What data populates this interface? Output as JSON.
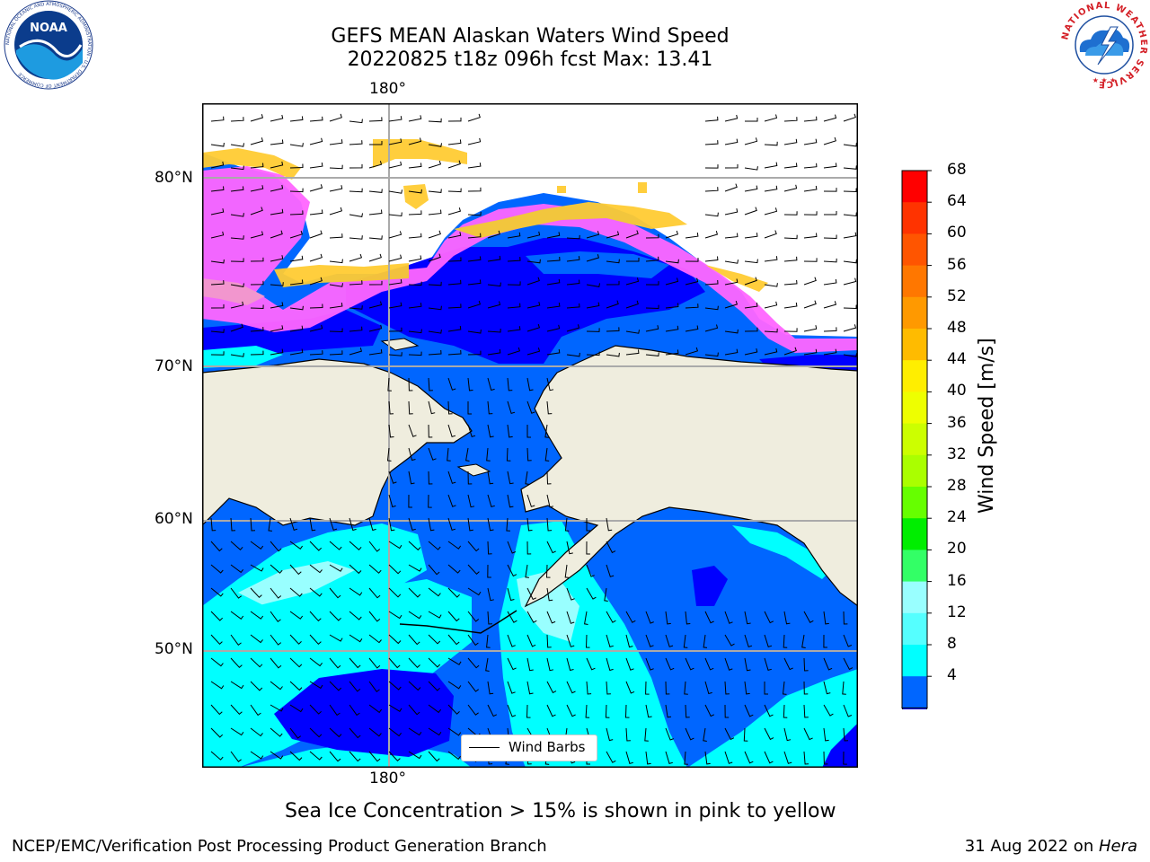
{
  "header": {
    "title_line1": "GEFS MEAN Alaskan Waters Wind Speed",
    "title_line2": "20220825 t18z 096h fcst   Max: 13.41"
  },
  "map": {
    "lon_label_top": "180°",
    "lon_label_bottom": "180°",
    "lat_labels": [
      "80°N",
      "70°N",
      "60°N",
      "50°N"
    ],
    "legend_label": "Wind Barbs",
    "land_color": "#efedde",
    "wind_fill_colors": [
      "#0000ff",
      "#0066ff",
      "#00ffff",
      "#99ffff"
    ],
    "ice_fill_colors": [
      "#ff66ff",
      "#ff99cc",
      "#ffcc33",
      "#ffdd00"
    ]
  },
  "colorbar": {
    "title": "Wind Speed [m/s]",
    "ticks": [
      "68",
      "64",
      "60",
      "56",
      "52",
      "48",
      "44",
      "40",
      "36",
      "32",
      "28",
      "24",
      "20",
      "16",
      "12",
      "8",
      "4"
    ],
    "colors_top_to_bottom": [
      "#ff0000",
      "#ff3300",
      "#ff5500",
      "#ff7700",
      "#ff9900",
      "#ffbb00",
      "#ffee00",
      "#eeff00",
      "#ccff00",
      "#aaff00",
      "#66ff00",
      "#00ee00",
      "#33ff66",
      "#99ffff",
      "#55ffff",
      "#00ffff",
      "#0066ff"
    ],
    "extend_color": "#0000ff"
  },
  "footer": {
    "note": "Sea Ice Concentration > 15% is shown in pink to yellow",
    "credit": "NCEP/EMC/Verification Post Processing Product Generation Branch",
    "date": "31 Aug 2022 on ",
    "machine": "Hera"
  },
  "logos": {
    "noaa_text": "NOAA",
    "noaa_ring_text": "NATIONAL OCEANIC AND ATMOSPHERIC ADMINISTRATION · U.S. DEPARTMENT OF COMMERCE",
    "nws_ring_text": "NATIONAL WEATHER SERVICE"
  }
}
